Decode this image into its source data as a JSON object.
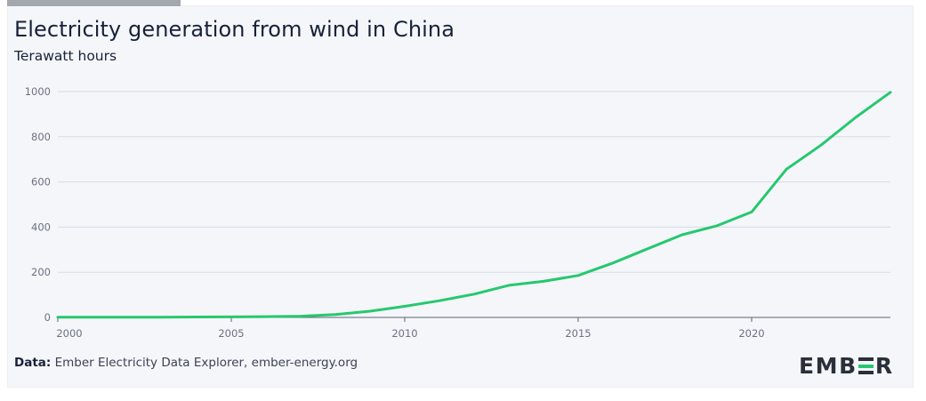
{
  "chart_data": {
    "type": "line",
    "title": "Electricity generation from wind in China",
    "subtitle": "Terawatt hours",
    "xlabel": "",
    "ylabel": "",
    "xlim": [
      2000,
      2024
    ],
    "ylim": [
      0,
      1000
    ],
    "x_ticks": [
      2000,
      2005,
      2010,
      2015,
      2020
    ],
    "y_ticks": [
      0,
      200,
      400,
      600,
      800,
      1000
    ],
    "grid": true,
    "legend": "none",
    "line_color": "#26c86f",
    "series": [
      {
        "x": [
          2000,
          2001,
          2002,
          2003,
          2004,
          2005,
          2006,
          2007,
          2008,
          2009,
          2010,
          2011,
          2012,
          2013,
          2014,
          2015,
          2016,
          2017,
          2018,
          2019,
          2020,
          2021,
          2022,
          2023,
          2024
        ],
        "values": [
          0.6,
          0.7,
          0.9,
          1.3,
          2.0,
          2.5,
          3.7,
          5.6,
          13.1,
          27.6,
          49.4,
          74.1,
          103,
          142,
          160,
          186,
          241,
          304,
          366,
          406,
          467,
          656,
          763,
          886,
          997
        ]
      }
    ]
  },
  "source": {
    "prefix": "Data:",
    "text": "Ember Electricity Data Explorer, ember-energy.org"
  },
  "logo": {
    "text": "EMBER",
    "accent_color": "#26c86f"
  }
}
